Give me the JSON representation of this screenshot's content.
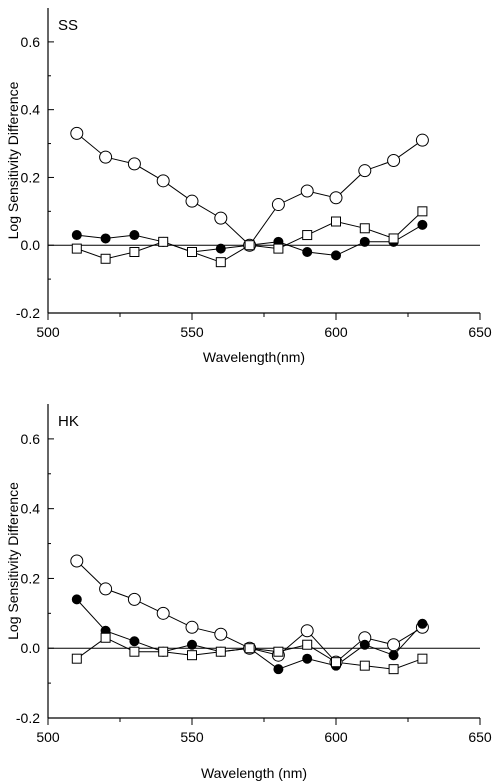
{
  "chart_data": [
    {
      "type": "line",
      "panel_label": "SS",
      "xlabel": "Wavelength(nm)",
      "ylabel": "Log Sensitivity Difference",
      "xlim": [
        500,
        650
      ],
      "ylim": [
        -0.2,
        0.7
      ],
      "xticks": [
        500,
        550,
        600,
        650
      ],
      "yticks": [
        -0.2,
        0.0,
        0.2,
        0.4,
        0.6
      ],
      "xtick_labels": [
        "500",
        "550",
        "600",
        "650"
      ],
      "ytick_labels": [
        "-0.2",
        "0.0",
        "0.2",
        "0.4",
        "0.6"
      ],
      "zero_line": true,
      "grid": false,
      "series": [
        {
          "marker": "open-circle",
          "x": [
            510,
            520,
            530,
            540,
            550,
            560,
            570,
            580,
            590,
            600,
            610,
            620,
            630
          ],
          "y": [
            0.33,
            0.26,
            0.24,
            0.19,
            0.13,
            0.08,
            0.0,
            0.12,
            0.16,
            0.14,
            0.22,
            0.25,
            0.31
          ]
        },
        {
          "marker": "filled-circle",
          "x": [
            510,
            520,
            530,
            540,
            550,
            560,
            570,
            580,
            590,
            600,
            610,
            620,
            630
          ],
          "y": [
            0.03,
            0.02,
            0.03,
            0.01,
            -0.02,
            -0.01,
            0.0,
            0.01,
            -0.02,
            -0.03,
            0.01,
            0.01,
            0.06
          ]
        },
        {
          "marker": "open-square",
          "x": [
            510,
            520,
            530,
            540,
            550,
            560,
            570,
            580,
            590,
            600,
            610,
            620,
            630
          ],
          "y": [
            -0.01,
            -0.04,
            -0.02,
            0.01,
            -0.02,
            -0.05,
            0.0,
            -0.01,
            0.03,
            0.07,
            0.05,
            0.02,
            0.1
          ]
        }
      ]
    },
    {
      "type": "line",
      "panel_label": "HK",
      "xlabel": "Wavelength (nm)",
      "ylabel": "Log Sensitivity Difference",
      "xlim": [
        500,
        650
      ],
      "ylim": [
        -0.2,
        0.7
      ],
      "xticks": [
        500,
        550,
        600,
        650
      ],
      "yticks": [
        -0.2,
        0.0,
        0.2,
        0.4,
        0.6
      ],
      "xtick_labels": [
        "500",
        "550",
        "600",
        "650"
      ],
      "ytick_labels": [
        "-0.2",
        "0.0",
        "0.2",
        "0.4",
        "0.6"
      ],
      "zero_line": true,
      "grid": false,
      "series": [
        {
          "marker": "open-circle",
          "x": [
            510,
            520,
            530,
            540,
            550,
            560,
            570,
            580,
            590,
            600,
            610,
            620,
            630
          ],
          "y": [
            0.25,
            0.17,
            0.14,
            0.1,
            0.06,
            0.04,
            0.0,
            -0.02,
            0.05,
            -0.04,
            0.03,
            0.01,
            0.06
          ]
        },
        {
          "marker": "filled-circle",
          "x": [
            510,
            520,
            530,
            540,
            550,
            560,
            570,
            580,
            590,
            600,
            610,
            620,
            630
          ],
          "y": [
            0.14,
            0.05,
            0.02,
            -0.01,
            0.01,
            -0.01,
            0.0,
            -0.06,
            -0.03,
            -0.05,
            0.01,
            -0.02,
            0.07
          ]
        },
        {
          "marker": "open-square",
          "x": [
            510,
            520,
            530,
            540,
            550,
            560,
            570,
            580,
            590,
            600,
            610,
            620,
            630
          ],
          "y": [
            -0.03,
            0.03,
            -0.01,
            -0.01,
            -0.02,
            -0.01,
            0.0,
            -0.01,
            0.01,
            -0.04,
            -0.05,
            -0.06,
            -0.03
          ]
        }
      ]
    }
  ]
}
